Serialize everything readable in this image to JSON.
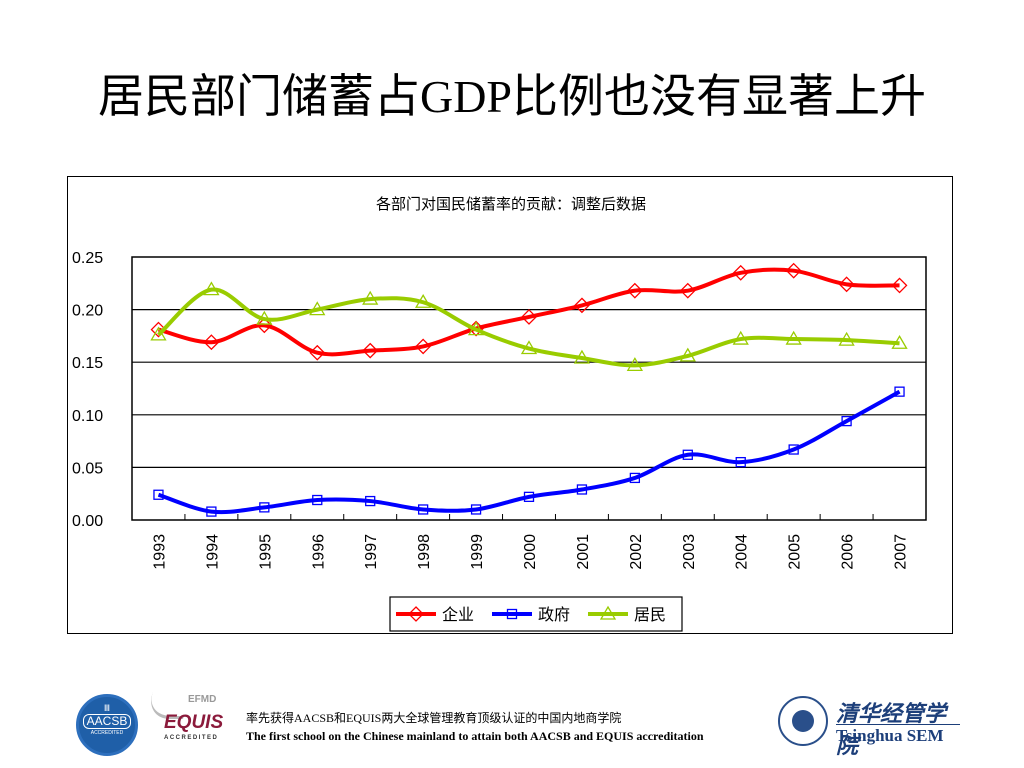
{
  "slide": {
    "title": "居民部门储蓄占GDP比例也没有显著上升"
  },
  "chart_data": {
    "type": "line",
    "title": "各部门对国民储蓄率的贡献：调整后数据",
    "xlabel": "",
    "ylabel": "",
    "x": [
      "1993",
      "1994",
      "1995",
      "1996",
      "1997",
      "1998",
      "1999",
      "2000",
      "2001",
      "2002",
      "2003",
      "2004",
      "2005",
      "2006",
      "2007"
    ],
    "ylim": [
      0,
      0.25
    ],
    "yticks": [
      "0.00",
      "0.05",
      "0.10",
      "0.15",
      "0.20",
      "0.25"
    ],
    "ytick_values": [
      0,
      0.05,
      0.1,
      0.15,
      0.2,
      0.25
    ],
    "grid": true,
    "legend_position": "bottom",
    "series": [
      {
        "name": "企业",
        "color": "#ff0000",
        "marker": "diamond",
        "values": [
          0.181,
          0.169,
          0.185,
          0.159,
          0.161,
          0.165,
          0.182,
          0.193,
          0.204,
          0.218,
          0.218,
          0.235,
          0.237,
          0.224,
          0.223
        ]
      },
      {
        "name": "政府",
        "color": "#0000ff",
        "marker": "square",
        "values": [
          0.024,
          0.008,
          0.012,
          0.019,
          0.018,
          0.01,
          0.01,
          0.022,
          0.029,
          0.04,
          0.062,
          0.055,
          0.067,
          0.094,
          0.122
        ]
      },
      {
        "name": "居民",
        "color": "#99cc00",
        "marker": "triangle",
        "values": [
          0.176,
          0.219,
          0.191,
          0.2,
          0.21,
          0.207,
          0.181,
          0.163,
          0.154,
          0.147,
          0.156,
          0.172,
          0.172,
          0.171,
          0.168
        ]
      }
    ]
  },
  "footer": {
    "line_zh": "率先获得AACSB和EQUIS两大全球管理教育顶级认证的中国内地商学院",
    "line_en": "The first school on the Chinese  mainland to attain both AACSB and EQUIS accreditation",
    "aacsb": {
      "pillar": "Ⅲ",
      "name": "AACSB",
      "status": "ACCREDITED"
    },
    "equis": {
      "org": "EFMD",
      "name": "EQUIS",
      "status": "ACCREDITED"
    },
    "school": {
      "name_zh": "清华经管学院",
      "name_en": "Tsinghua SEM"
    }
  }
}
